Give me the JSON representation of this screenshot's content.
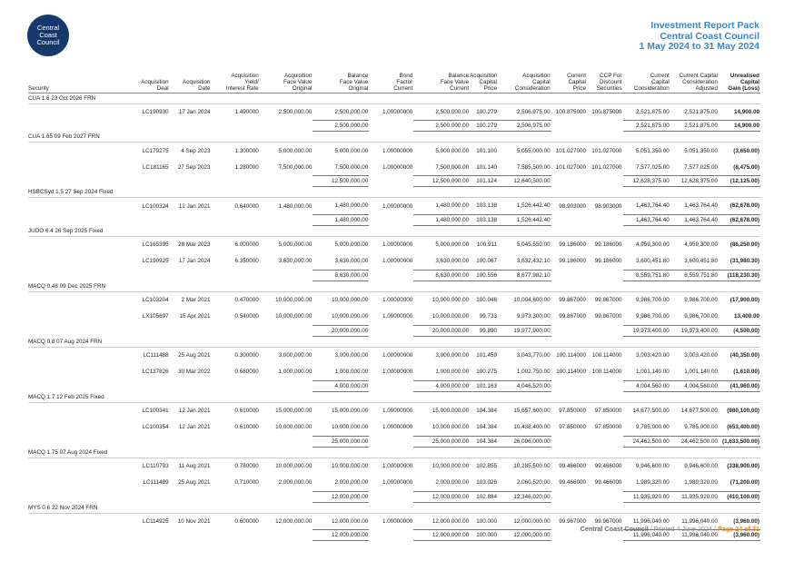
{
  "logo": {
    "line1": "Central",
    "line2": "Coast",
    "line3": "Council"
  },
  "header": {
    "title": "Investment Report Pack",
    "org": "Central Coast Council",
    "period": "1 May 2024 to 31 May 2024"
  },
  "columns": [
    "Security",
    "Acquisition\nDeal",
    "Acquisition\nDate",
    "Acquisition\nYield/\nInterest Rate",
    "Acquisition\nFace Value\nOriginal",
    "Balance\nFace Value\nOriginal",
    "Bond\nFactor\nCurrent",
    "Balance\nFace Value\nCurrent",
    "Acquisition\nCapital\nPrice",
    "Acquisition\nCapital\nConsideration",
    "Current\nCapital\nPrice",
    "CCP For\nDiscount\nSecurities",
    "Current\nCapital\nConsideration",
    "Current Capital\nConsideration\nAdjusted",
    "Unrealised\nCapital\nGain (Loss)"
  ],
  "groups": [
    {
      "name": "CUA 1.6 23 Oct 2026 FRN",
      "rows": [
        [
          "LC190930",
          "17 Jan 2024",
          "1.490000",
          "2,500,000.00",
          "2,500,000.00",
          "1.00000000",
          "2,500,000.00",
          "100.279",
          "2,506,975.00",
          "100.875000",
          "100.875000",
          "2,521,875.00",
          "2,521,875.00",
          "14,900.00"
        ]
      ],
      "total": [
        "2,500,000.00",
        "2,500,000.00",
        "100.279",
        "2,506,975.00",
        "2,521,875.00",
        "2,521,875.00",
        "14,900.00"
      ]
    },
    {
      "name": "CUA 1.65 09 Feb 2027 FRN",
      "rows": [
        [
          "LC179275",
          "4 Sep 2023",
          "1.300000",
          "5,000,000.00",
          "5,000,000.00",
          "1.00000000",
          "5,000,000.00",
          "101.100",
          "5,055,000.00",
          "101.027000",
          "101.027000",
          "5,051,350.00",
          "5,051,350.00",
          "(3,650.00)"
        ],
        [
          "LC181165",
          "27 Sep 2023",
          "1.280000",
          "7,500,000.00",
          "7,500,000.00",
          "1.00000000",
          "7,500,000.00",
          "101.140",
          "7,585,500.00",
          "101.027000",
          "101.027000",
          "7,577,025.00",
          "7,577,025.00",
          "(8,475.00)"
        ]
      ],
      "total": [
        "12,500,000.00",
        "12,500,000.00",
        "101.124",
        "12,640,500.00",
        "12,628,375.00",
        "12,628,375.00",
        "(12,125.00)"
      ]
    },
    {
      "name": "HSBCSyd 1.5 27 Sep 2024 Fixed",
      "rows": [
        [
          "LC100324",
          "12 Jan 2021",
          "0.640000",
          "1,480,000.00",
          "1,480,000.00",
          "1.00000000",
          "1,480,000.00",
          "103.138",
          "1,526,442.40",
          "98.903000",
          "98.903000",
          "1,463,764.40",
          "1,463,764.40",
          "(62,678.00)"
        ]
      ],
      "total": [
        "1,480,000.00",
        "1,480,000.00",
        "103.138",
        "1,526,442.40",
        "1,463,764.40",
        "1,463,764.40",
        "(62,678.00)"
      ]
    },
    {
      "name": "JUDO 6.4 26 Sep 2025 Fixed",
      "rows": [
        [
          "LC165395",
          "28 Mar 2023",
          "6.000000",
          "5,000,000.00",
          "5,000,000.00",
          "1.00000000",
          "5,000,000.00",
          "100.911",
          "5,045,550.00",
          "99.186000",
          "99.186000",
          "4,959,300.00",
          "4,959,300.00",
          "(86,250.00)"
        ],
        [
          "LC190925",
          "17 Jan 2024",
          "6.350000",
          "3,630,000.00",
          "3,630,000.00",
          "1.00000000",
          "3,630,000.00",
          "100.067",
          "3,632,432.10",
          "99.186000",
          "99.186000",
          "3,600,451.80",
          "3,600,451.80",
          "(31,980.30)"
        ]
      ],
      "total": [
        "8,630,000.00",
        "8,630,000.00",
        "100.556",
        "8,677,982.10",
        "8,559,751.80",
        "8,559,751.80",
        "(118,230.30)"
      ]
    },
    {
      "name": "MACQ 0.48 09 Dec 2025 FRN",
      "rows": [
        [
          "LC103204",
          "2 Mar 2021",
          "0.470000",
          "10,000,000.00",
          "10,000,000.00",
          "1.00000000",
          "10,000,000.00",
          "100.046",
          "10,004,600.00",
          "99.867000",
          "99.867000",
          "9,986,700.00",
          "9,986,700.00",
          "(17,900.00)"
        ],
        [
          "LX105697",
          "15 Apr 2021",
          "0.540000",
          "10,000,000.00",
          "10,000,000.00",
          "1.00000000",
          "10,000,000.00",
          "99.733",
          "9,973,300.00",
          "99.867000",
          "99.867000",
          "9,986,700.00",
          "9,986,700.00",
          "13,400.00"
        ]
      ],
      "total": [
        "20,000,000.00",
        "20,000,000.00",
        "99.890",
        "19,977,900.00",
        "19,973,400.00",
        "19,973,400.00",
        "(4,500.00)"
      ]
    },
    {
      "name": "MACQ 0.8 07 Aug 2024 FRN",
      "rows": [
        [
          "LC111488",
          "25 Aug 2021",
          "0.300000",
          "3,000,000.00",
          "3,000,000.00",
          "1.00000000",
          "3,000,000.00",
          "101.459",
          "3,043,770.00",
          "100.114000",
          "100.114000",
          "3,003,420.00",
          "3,003,420.00",
          "(40,350.00)"
        ],
        [
          "LC137826",
          "30 Mar 2022",
          "0.680000",
          "1,000,000.00",
          "1,000,000.00",
          "1.00000000",
          "1,000,000.00",
          "100.275",
          "1,002,750.00",
          "100.114000",
          "100.114000",
          "1,001,140.00",
          "1,001,140.00",
          "(1,610.00)"
        ]
      ],
      "total": [
        "4,000,000.00",
        "4,000,000.00",
        "101.163",
        "4,046,520.00",
        "4,004,560.00",
        "4,004,560.00",
        "(41,960.00)"
      ]
    },
    {
      "name": "MACQ 1.7 12 Feb 2025 Fixed",
      "rows": [
        [
          "LC100341",
          "12 Jan 2021",
          "0.610000",
          "15,000,000.00",
          "15,000,000.00",
          "1.00000000",
          "15,000,000.00",
          "104.384",
          "15,657,600.00",
          "97.850000",
          "97.850000",
          "14,677,500.00",
          "14,677,500.00",
          "(980,100.00)"
        ],
        [
          "LC100354",
          "12 Jan 2021",
          "0.610000",
          "10,000,000.00",
          "10,000,000.00",
          "1.00000000",
          "10,000,000.00",
          "104.384",
          "10,438,400.00",
          "97.850000",
          "97.850000",
          "9,785,000.00",
          "9,785,000.00",
          "(653,400.00)"
        ]
      ],
      "total": [
        "25,000,000.00",
        "25,000,000.00",
        "104.384",
        "26,096,000.00",
        "24,462,500.00",
        "24,462,500.00",
        "(1,633,500.00)"
      ]
    },
    {
      "name": "MACQ 1.75 07 Aug 2024 Fixed",
      "rows": [
        [
          "LC110793",
          "11 Aug 2021",
          "0.780000",
          "10,000,000.00",
          "10,000,000.00",
          "1.00000000",
          "10,000,000.00",
          "102.855",
          "10,285,500.00",
          "99.466000",
          "99.466000",
          "9,946,600.00",
          "9,946,600.00",
          "(338,900.00)"
        ],
        [
          "LC111489",
          "25 Aug 2021",
          "0.710000",
          "2,000,000.00",
          "2,000,000.00",
          "1.00000000",
          "2,000,000.00",
          "103.026",
          "2,060,520.00",
          "99.466000",
          "99.466000",
          "1,989,320.00",
          "1,989,320.00",
          "(71,200.00)"
        ]
      ],
      "total": [
        "12,000,000.00",
        "12,000,000.00",
        "102.884",
        "12,346,020.00",
        "11,935,920.00",
        "11,935,920.00",
        "(410,100.00)"
      ]
    },
    {
      "name": "MYS 0.6 22 Nov 2024 FRN",
      "rows": [
        [
          "LC114925",
          "10 Nov 2021",
          "0.600000",
          "12,000,000.00",
          "12,000,000.00",
          "1.00000000",
          "12,000,000.00",
          "100.000",
          "12,000,000.00",
          "99.967000",
          "99.967000",
          "11,996,040.00",
          "11,996,040.00",
          "(3,960.00)"
        ]
      ],
      "total": [
        "12,000,000.00",
        "12,000,000.00",
        "100.000",
        "12,000,000.00",
        "11,996,040.00",
        "11,996,040.00",
        "(3,960.00)"
      ]
    }
  ],
  "footer": {
    "org": "Central Coast Council",
    "printed": " / Printed 4 June 2024 / ",
    "page": "Page 24 of 31"
  }
}
